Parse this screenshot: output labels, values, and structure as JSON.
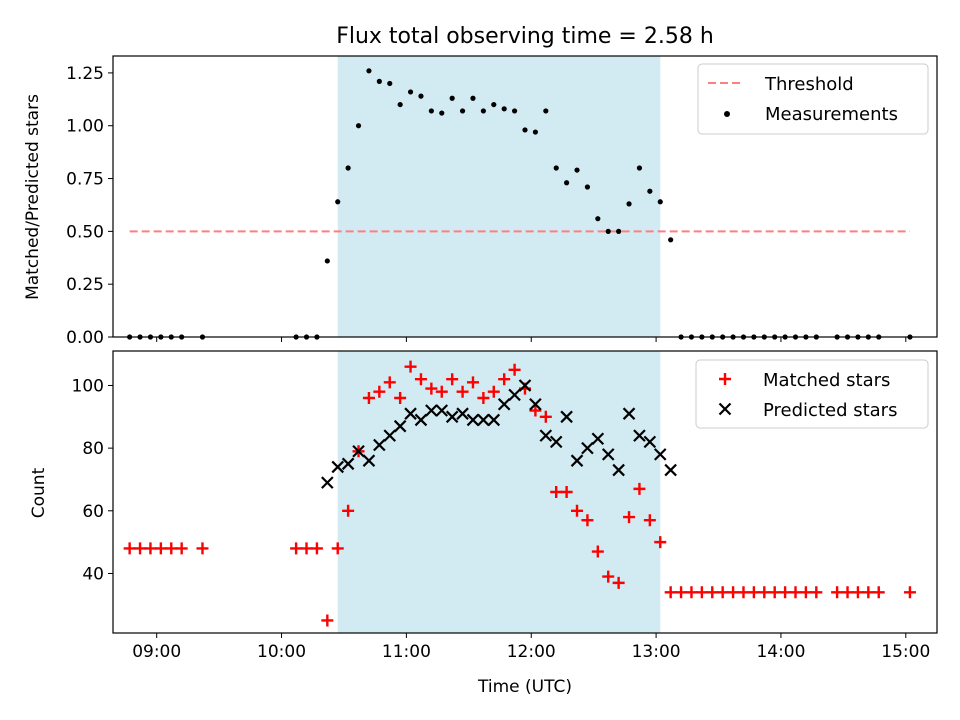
{
  "title": "Flux total observing time = 2.58 h",
  "colors": {
    "threshold": "#ff7f7f",
    "measurement": "#000000",
    "matched": "#ff0000",
    "predicted": "#000000",
    "observing_span": "#add8e6"
  },
  "chart_data": [
    {
      "type": "scatter",
      "panel": "top",
      "ylabel": "Matched/Predicted stars",
      "xlabel": "",
      "xlim": [
        "08:39",
        "15:15"
      ],
      "ylim": [
        0,
        1.33
      ],
      "yticks": [
        0.0,
        0.25,
        0.5,
        0.75,
        1.0,
        1.25
      ],
      "ytick_labels": [
        "0.00",
        "0.25",
        "0.50",
        "0.75",
        "1.00",
        "1.25"
      ],
      "xticks": [
        "09:00",
        "10:00",
        "11:00",
        "12:00",
        "13:00",
        "14:00",
        "15:00"
      ],
      "observing_span": [
        "10:27",
        "13:02"
      ],
      "legend": {
        "placement": "top-right",
        "entries": [
          "Threshold",
          "Measurements"
        ]
      },
      "threshold": {
        "name": "Threshold",
        "value": 0.5,
        "x": [
          "08:47",
          "15:02"
        ],
        "style": "dashed"
      },
      "series": [
        {
          "name": "Measurements",
          "points": [
            [
              "08:47",
              0.0
            ],
            [
              "08:52",
              0.0
            ],
            [
              "08:57",
              0.0
            ],
            [
              "09:02",
              0.0
            ],
            [
              "09:07",
              0.0
            ],
            [
              "09:12",
              0.0
            ],
            [
              "09:22",
              0.0
            ],
            [
              "10:07",
              0.0
            ],
            [
              "10:12",
              0.0
            ],
            [
              "10:17",
              0.0
            ],
            [
              "10:22",
              0.36
            ],
            [
              "10:27",
              0.64
            ],
            [
              "10:32",
              0.8
            ],
            [
              "10:37",
              1.0
            ],
            [
              "10:42",
              1.26
            ],
            [
              "10:47",
              1.21
            ],
            [
              "10:52",
              1.2
            ],
            [
              "10:57",
              1.1
            ],
            [
              "11:02",
              1.16
            ],
            [
              "11:07",
              1.14
            ],
            [
              "11:12",
              1.07
            ],
            [
              "11:17",
              1.06
            ],
            [
              "11:22",
              1.13
            ],
            [
              "11:27",
              1.07
            ],
            [
              "11:32",
              1.13
            ],
            [
              "11:37",
              1.07
            ],
            [
              "11:42",
              1.1
            ],
            [
              "11:47",
              1.08
            ],
            [
              "11:52",
              1.07
            ],
            [
              "11:57",
              0.98
            ],
            [
              "12:02",
              0.97
            ],
            [
              "12:07",
              1.07
            ],
            [
              "12:12",
              0.8
            ],
            [
              "12:17",
              0.73
            ],
            [
              "12:22",
              0.79
            ],
            [
              "12:27",
              0.71
            ],
            [
              "12:32",
              0.56
            ],
            [
              "12:37",
              0.5
            ],
            [
              "12:42",
              0.5
            ],
            [
              "12:47",
              0.63
            ],
            [
              "12:52",
              0.8
            ],
            [
              "12:57",
              0.69
            ],
            [
              "13:02",
              0.64
            ],
            [
              "13:07",
              0.46
            ],
            [
              "13:12",
              0.0
            ],
            [
              "13:17",
              0.0
            ],
            [
              "13:22",
              0.0
            ],
            [
              "13:27",
              0.0
            ],
            [
              "13:32",
              0.0
            ],
            [
              "13:37",
              0.0
            ],
            [
              "13:42",
              0.0
            ],
            [
              "13:47",
              0.0
            ],
            [
              "13:52",
              0.0
            ],
            [
              "13:57",
              0.0
            ],
            [
              "14:02",
              0.0
            ],
            [
              "14:07",
              0.0
            ],
            [
              "14:12",
              0.0
            ],
            [
              "14:17",
              0.0
            ],
            [
              "14:27",
              0.0
            ],
            [
              "14:32",
              0.0
            ],
            [
              "14:37",
              0.0
            ],
            [
              "14:42",
              0.0
            ],
            [
              "14:47",
              0.0
            ],
            [
              "15:02",
              0.0
            ]
          ]
        }
      ]
    },
    {
      "type": "scatter",
      "panel": "bottom",
      "xlabel": "Time (UTC)",
      "ylabel": "Count",
      "xlim": [
        "08:39",
        "15:15"
      ],
      "ylim": [
        21,
        111
      ],
      "yticks": [
        40,
        60,
        80,
        100
      ],
      "ytick_labels": [
        "40",
        "60",
        "80",
        "100"
      ],
      "xticks": [
        "09:00",
        "10:00",
        "11:00",
        "12:00",
        "13:00",
        "14:00",
        "15:00"
      ],
      "xtick_labels": [
        "09:00",
        "10:00",
        "11:00",
        "12:00",
        "13:00",
        "14:00",
        "15:00"
      ],
      "observing_span": [
        "10:27",
        "13:02"
      ],
      "legend": {
        "placement": "top-right",
        "entries": [
          "Matched stars",
          "Predicted stars"
        ]
      },
      "series": [
        {
          "name": "Matched stars",
          "marker": "+",
          "points": [
            [
              "08:47",
              48
            ],
            [
              "08:52",
              48
            ],
            [
              "08:57",
              48
            ],
            [
              "09:02",
              48
            ],
            [
              "09:07",
              48
            ],
            [
              "09:12",
              48
            ],
            [
              "09:22",
              48
            ],
            [
              "10:07",
              48
            ],
            [
              "10:12",
              48
            ],
            [
              "10:17",
              48
            ],
            [
              "10:22",
              25
            ],
            [
              "10:27",
              48
            ],
            [
              "10:32",
              60
            ],
            [
              "10:37",
              79
            ],
            [
              "10:42",
              96
            ],
            [
              "10:47",
              98
            ],
            [
              "10:52",
              101
            ],
            [
              "10:57",
              96
            ],
            [
              "11:02",
              106
            ],
            [
              "11:07",
              102
            ],
            [
              "11:12",
              99
            ],
            [
              "11:17",
              98
            ],
            [
              "11:22",
              102
            ],
            [
              "11:27",
              98
            ],
            [
              "11:32",
              101
            ],
            [
              "11:37",
              96
            ],
            [
              "11:42",
              98
            ],
            [
              "11:47",
              102
            ],
            [
              "11:52",
              105
            ],
            [
              "11:57",
              99
            ],
            [
              "12:02",
              92
            ],
            [
              "12:07",
              90
            ],
            [
              "12:12",
              66
            ],
            [
              "12:17",
              66
            ],
            [
              "12:22",
              60
            ],
            [
              "12:27",
              57
            ],
            [
              "12:32",
              47
            ],
            [
              "12:37",
              39
            ],
            [
              "12:42",
              37
            ],
            [
              "12:47",
              58
            ],
            [
              "12:52",
              67
            ],
            [
              "12:57",
              57
            ],
            [
              "13:02",
              50
            ],
            [
              "13:07",
              34
            ],
            [
              "13:12",
              34
            ],
            [
              "13:17",
              34
            ],
            [
              "13:22",
              34
            ],
            [
              "13:27",
              34
            ],
            [
              "13:32",
              34
            ],
            [
              "13:37",
              34
            ],
            [
              "13:42",
              34
            ],
            [
              "13:47",
              34
            ],
            [
              "13:52",
              34
            ],
            [
              "13:57",
              34
            ],
            [
              "14:02",
              34
            ],
            [
              "14:07",
              34
            ],
            [
              "14:12",
              34
            ],
            [
              "14:17",
              34
            ],
            [
              "14:27",
              34
            ],
            [
              "14:32",
              34
            ],
            [
              "14:37",
              34
            ],
            [
              "14:42",
              34
            ],
            [
              "14:47",
              34
            ],
            [
              "15:02",
              34
            ]
          ]
        },
        {
          "name": "Predicted stars",
          "marker": "x",
          "points": [
            [
              "10:22",
              69
            ],
            [
              "10:27",
              74
            ],
            [
              "10:32",
              75
            ],
            [
              "10:37",
              79
            ],
            [
              "10:42",
              76
            ],
            [
              "10:47",
              81
            ],
            [
              "10:52",
              84
            ],
            [
              "10:57",
              87
            ],
            [
              "11:02",
              91
            ],
            [
              "11:07",
              89
            ],
            [
              "11:12",
              92
            ],
            [
              "11:17",
              92
            ],
            [
              "11:22",
              90
            ],
            [
              "11:27",
              91
            ],
            [
              "11:32",
              89
            ],
            [
              "11:37",
              89
            ],
            [
              "11:42",
              89
            ],
            [
              "11:47",
              94
            ],
            [
              "11:52",
              97
            ],
            [
              "11:57",
              100
            ],
            [
              "12:02",
              94
            ],
            [
              "12:07",
              84
            ],
            [
              "12:12",
              82
            ],
            [
              "12:17",
              90
            ],
            [
              "12:22",
              76
            ],
            [
              "12:27",
              80
            ],
            [
              "12:32",
              83
            ],
            [
              "12:37",
              78
            ],
            [
              "12:42",
              73
            ],
            [
              "12:47",
              91
            ],
            [
              "12:52",
              84
            ],
            [
              "12:57",
              82
            ],
            [
              "13:02",
              78
            ],
            [
              "13:07",
              73
            ]
          ]
        }
      ]
    }
  ]
}
